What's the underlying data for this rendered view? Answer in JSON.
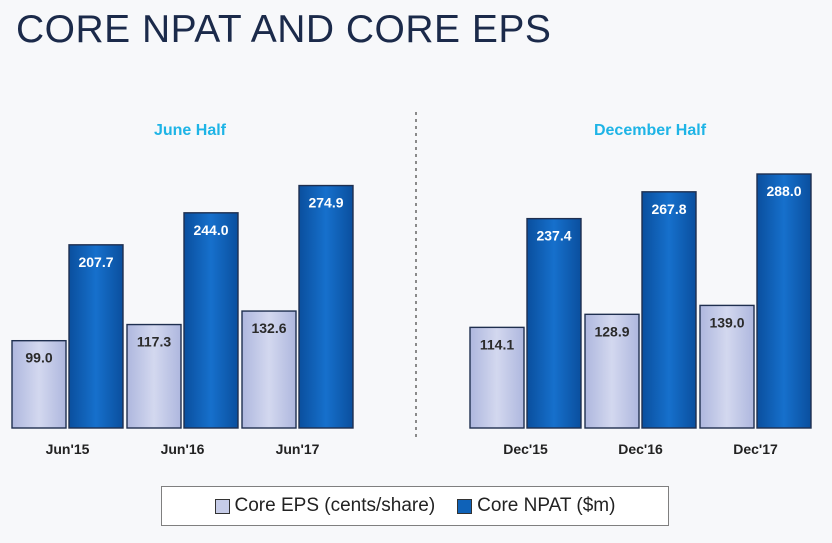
{
  "title": "CORE NPAT AND CORE EPS",
  "colors": {
    "eps_fill": "#c6cce8",
    "npat_fill": "#0f62b8",
    "panel_title": "#1eb4e6",
    "title_text": "#1b2a4a"
  },
  "legend": {
    "eps": "Core EPS (cents/share)",
    "npat": "Core NPAT ($m)"
  },
  "chart_data": [
    {
      "type": "bar",
      "title": "June Half",
      "categories": [
        "Jun'15",
        "Jun'16",
        "Jun'17"
      ],
      "series": [
        {
          "name": "Core EPS (cents/share)",
          "values": [
            99.0,
            117.3,
            132.6
          ]
        },
        {
          "name": "Core NPAT ($m)",
          "values": [
            207.7,
            244.0,
            274.9
          ]
        }
      ],
      "ylim": [
        0,
        300
      ],
      "grid": false,
      "legend": "bottom"
    },
    {
      "type": "bar",
      "title": "December Half",
      "categories": [
        "Dec'15",
        "Dec'16",
        "Dec'17"
      ],
      "series": [
        {
          "name": "Core EPS (cents/share)",
          "values": [
            114.1,
            128.9,
            139.0
          ]
        },
        {
          "name": "Core NPAT ($m)",
          "values": [
            237.4,
            267.8,
            288.0
          ]
        }
      ],
      "ylim": [
        0,
        300
      ],
      "grid": false,
      "legend": "bottom"
    }
  ]
}
